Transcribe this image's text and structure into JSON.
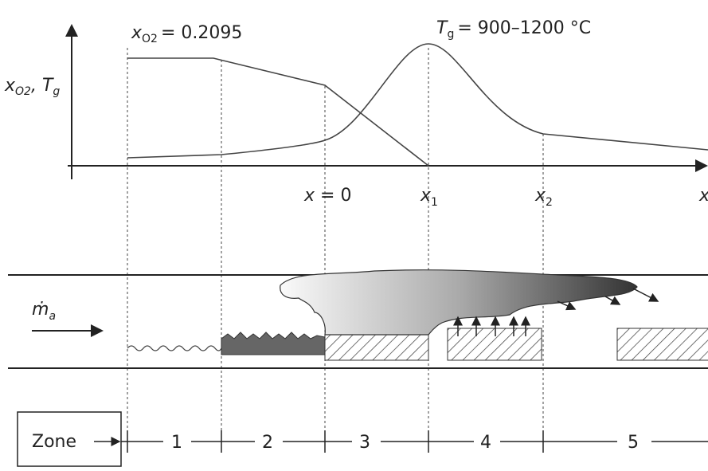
{
  "axis_label": {
    "x_symbol": "x",
    "x_sub": "O2",
    "separator": ",",
    "t_symbol": "T",
    "t_sub": "g"
  },
  "annotations": {
    "oxygen": {
      "symbol": "x",
      "sub": "O2",
      "text": "= 0.2095"
    },
    "temperature": {
      "symbol": "T",
      "sub": "g",
      "text": "= 900–1200 °C"
    }
  },
  "positions": [
    {
      "symbol": "x",
      "text": "= 0"
    },
    {
      "symbol": "x",
      "sub": "1"
    },
    {
      "symbol": "x",
      "sub": "2"
    },
    {
      "symbol": "x"
    }
  ],
  "flow_label": {
    "symbol": "ṁ",
    "sub": "a"
  },
  "zone_label": "Zone",
  "zones": [
    "1",
    "2",
    "3",
    "4",
    "5"
  ]
}
